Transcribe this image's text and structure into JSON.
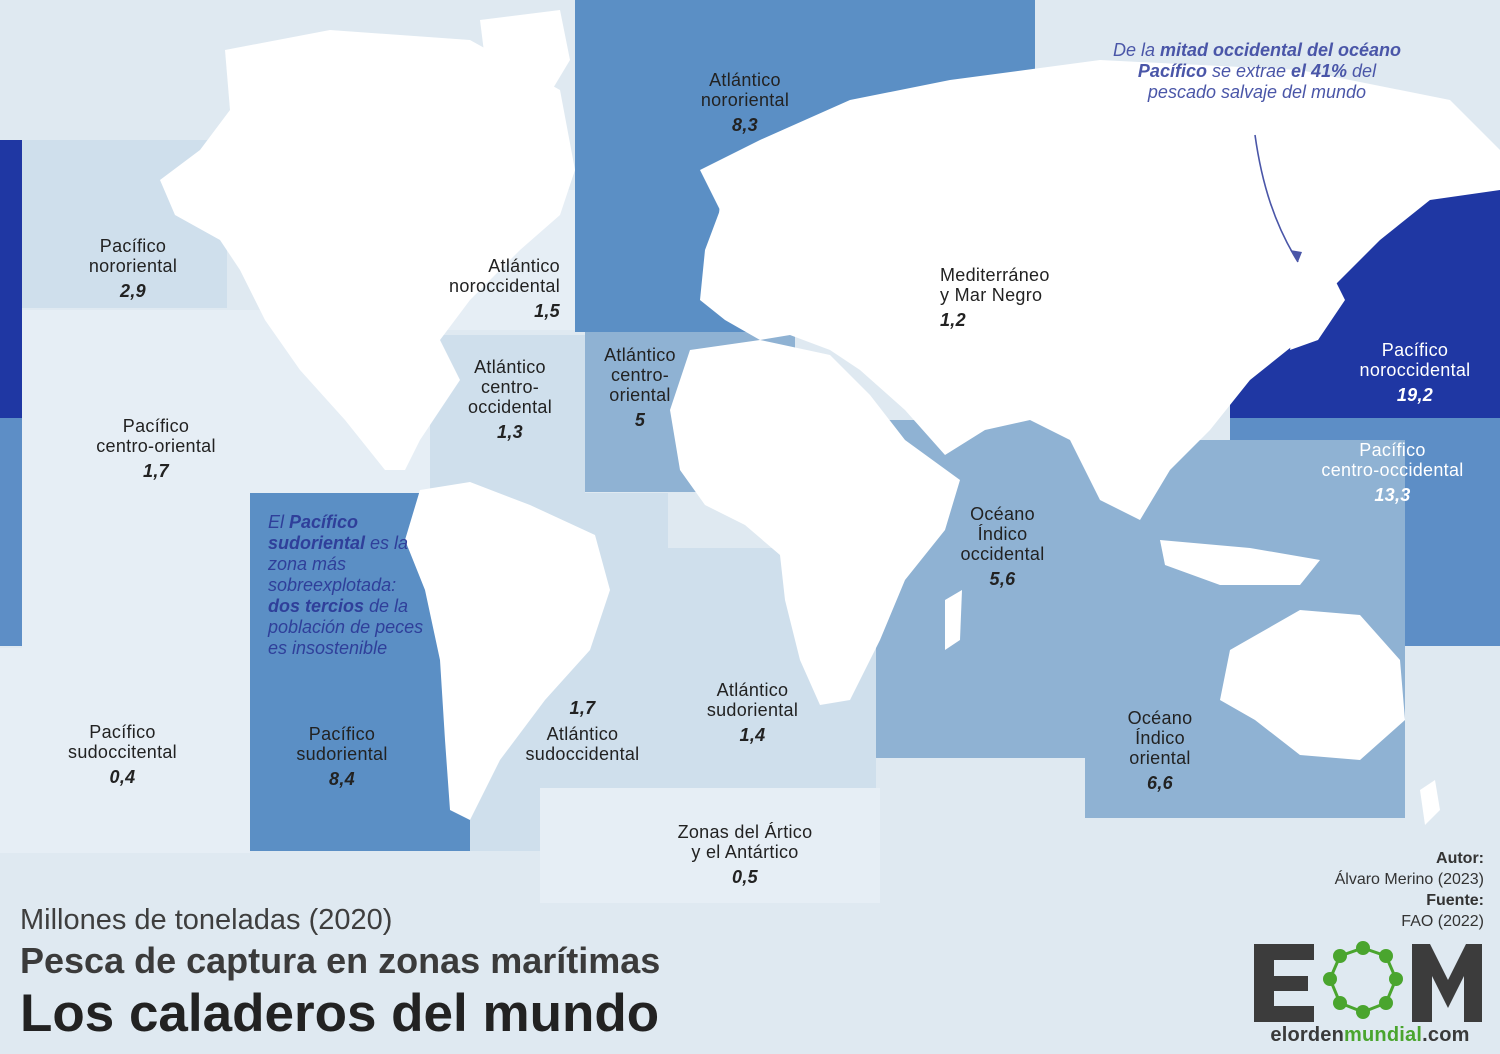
{
  "map": {
    "units": "Millones de toneladas (2020)",
    "subtitle": "Pesca de captura en zonas marítimas",
    "title": "Los caladeros del mundo",
    "colors": {
      "ocean_base": "#dfe9f1",
      "land": "#ffffff",
      "level_1": "#e6eef5",
      "level_2": "#cfdfec",
      "level_3": "#8fb2d3",
      "level_4": "#5b8fc5",
      "level_5": "#5d8ec6",
      "level_max": "#1f37a3",
      "note_text": "#2f3f9a"
    },
    "zones": [
      {
        "id": "pacifico-nororiental",
        "name": "Pacífico\nnororiental",
        "value": "2,9"
      },
      {
        "id": "atlantico-noroccidental",
        "name": "Atlántico\nnoroccidental",
        "value": "1,5"
      },
      {
        "id": "atlantico-nororiental",
        "name": "Atlántico\nnororiental",
        "value": "8,3"
      },
      {
        "id": "mediterraneo",
        "name": "Mediterráneo\ny Mar Negro",
        "value": "1,2"
      },
      {
        "id": "pacifico-noroccidental",
        "name": "Pacífico\nnoroccidental",
        "value": "19,2"
      },
      {
        "id": "pacifico-centro-oriental",
        "name": "Pacífico\ncentro-oriental",
        "value": "1,7"
      },
      {
        "id": "atlantico-centro-occidental",
        "name": "Atlántico\ncentro-\noccidental",
        "value": "1,3"
      },
      {
        "id": "atlantico-centro-oriental",
        "name": "Atlántico\ncentro-\noriental",
        "value": "5"
      },
      {
        "id": "pacifico-centro-occidental",
        "name": "Pacífico\ncentro-occidental",
        "value": "13,3"
      },
      {
        "id": "indico-occidental",
        "name": "Océano\nÍndico\noccidental",
        "value": "5,6"
      },
      {
        "id": "pacifico-sudoccidental",
        "name": "Pacífico\nsudoccitental",
        "value": "0,4"
      },
      {
        "id": "pacifico-sudoriental",
        "name": "Pacífico\nsudoriental",
        "value": "8,4"
      },
      {
        "id": "atlantico-sudoccidental",
        "name": "Atlántico\nsudoccidental",
        "value": "1,7"
      },
      {
        "id": "atlantico-sudoriental",
        "name": "Atlántico\nsudoriental",
        "value": "1,4"
      },
      {
        "id": "indico-oriental",
        "name": "Océano\nÍndico\noriental",
        "value": "6,6"
      },
      {
        "id": "artico-antartico",
        "name": "Zonas del Ártico\ny el Antártico",
        "value": "0,5"
      }
    ],
    "notes": {
      "southeast_pacific": {
        "p1": "El ",
        "b1": "Pacífico sudoriental",
        "p2": " es la zona más sobreexplotada: ",
        "b2": "dos tercios",
        "p3": " de la población de peces es insostenible"
      },
      "northwest_pacific": {
        "p1": "De la ",
        "b1": "mitad occidental del océano Pacífico",
        "p2": " se extrae ",
        "b2": "el 41%",
        "p3": " del pescado salvaje del mundo"
      }
    },
    "credits": {
      "author_label": "Autor:",
      "author": "Álvaro Merino (2023)",
      "source_label": "Fuente:",
      "source": "FAO (2022)"
    },
    "logo": {
      "text": "EOM",
      "site_a": "elorden",
      "site_b": "mundial",
      "site_c": ".com"
    }
  }
}
